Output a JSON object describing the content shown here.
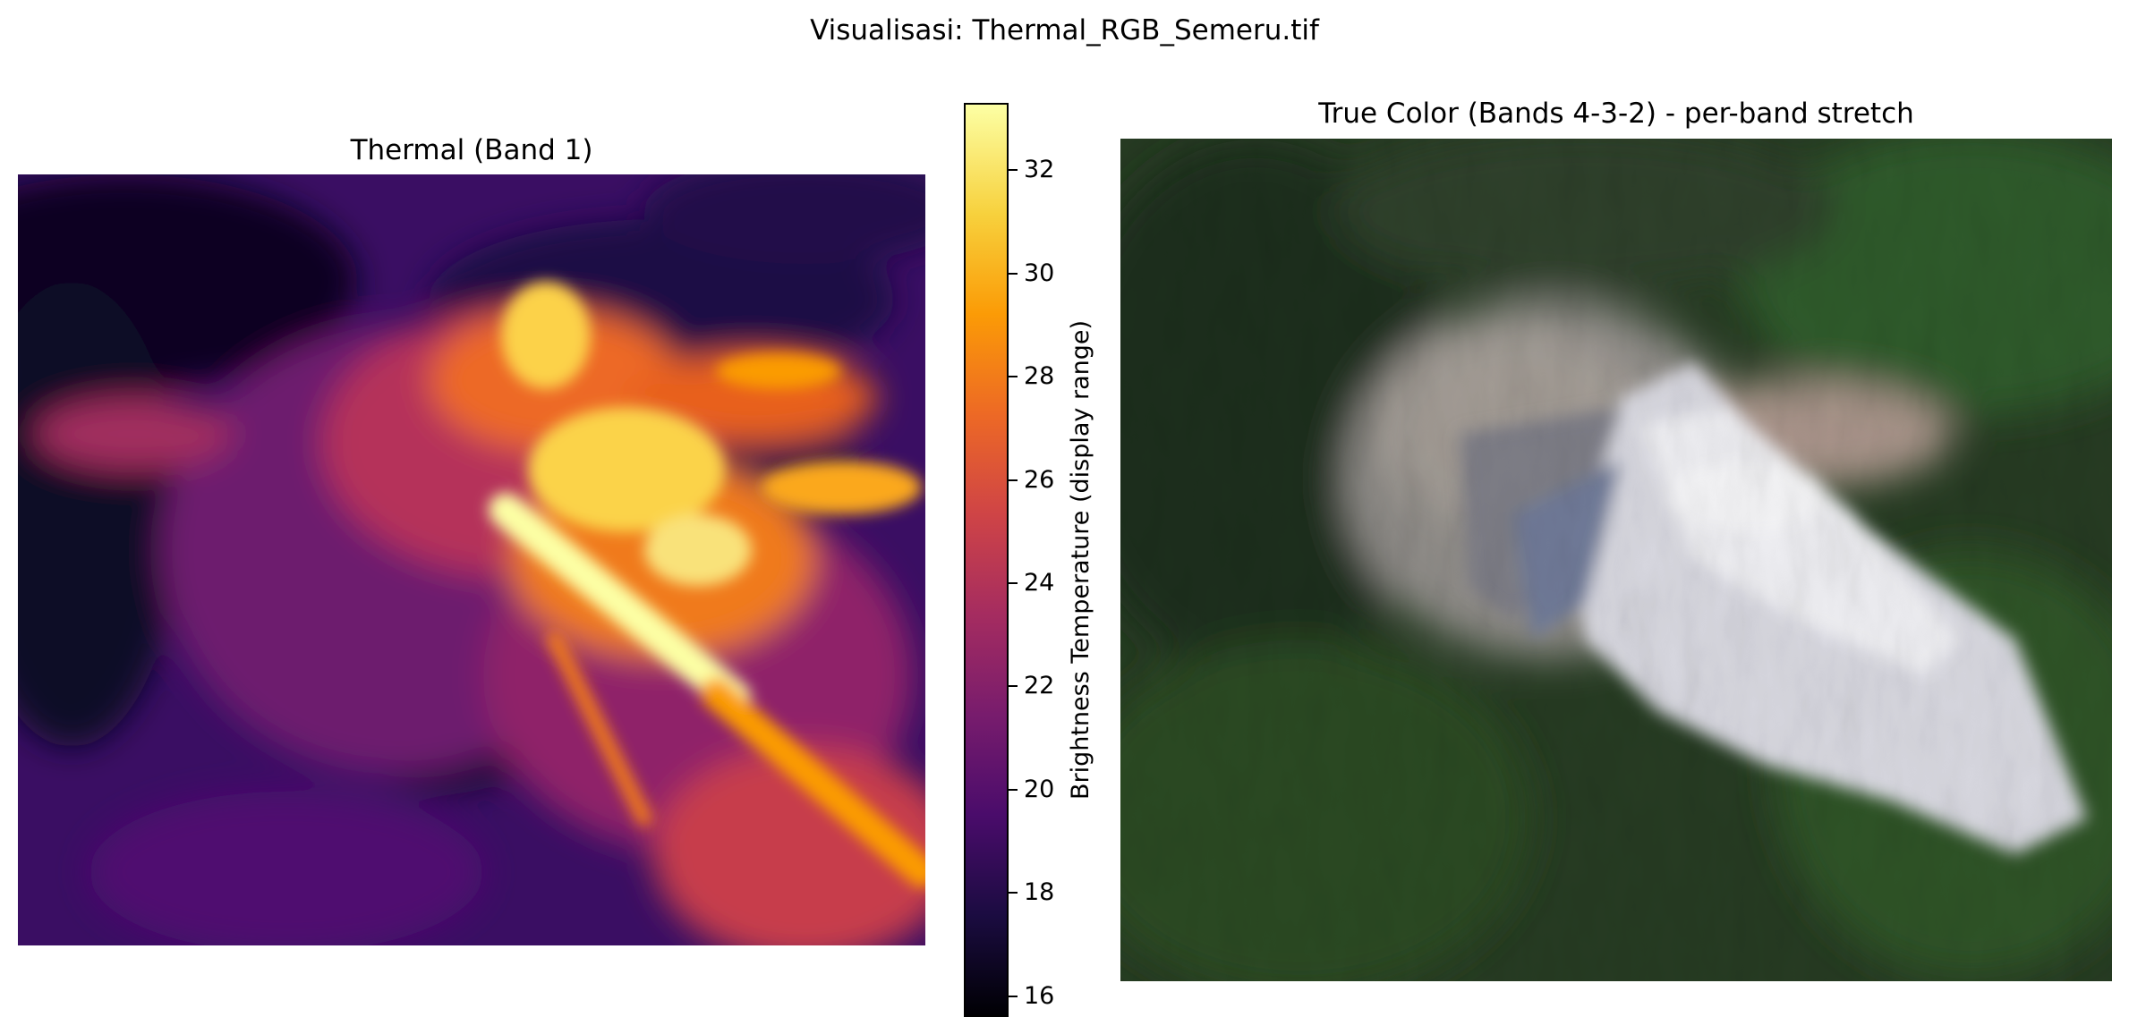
{
  "figure": {
    "suptitle": "Visualisasi: Thermal_RGB_Semeru.tif"
  },
  "thermal_panel": {
    "title": "Thermal (Band 1)",
    "colormap": "inferno"
  },
  "colorbar": {
    "label": "Brightness Temperature (display range)",
    "min": 15.6,
    "max": 33.3,
    "ticks": [
      "16",
      "18",
      "20",
      "22",
      "24",
      "26",
      "28",
      "30",
      "32"
    ]
  },
  "rgb_panel": {
    "title": "True Color (Bands 4-3-2) - per-band stretch"
  },
  "colors": {
    "thermal_hot": "#fcffa4",
    "thermal_cold": "#000004",
    "vegetation": "#2f5a2b",
    "ash": "#d8d8e0"
  }
}
